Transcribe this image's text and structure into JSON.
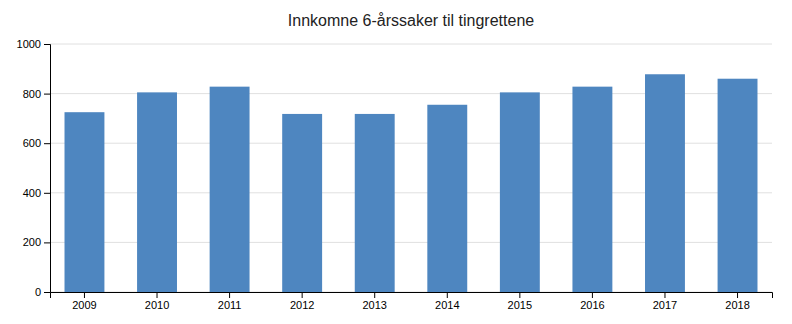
{
  "chart_data": {
    "type": "bar",
    "title": "Innkomne 6-årssaker til tingrettene",
    "categories": [
      "2009",
      "2010",
      "2011",
      "2012",
      "2013",
      "2014",
      "2015",
      "2016",
      "2017",
      "2018"
    ],
    "values": [
      725,
      805,
      828,
      718,
      718,
      755,
      805,
      828,
      878,
      860
    ],
    "color": "#4e86c0",
    "ylim": [
      0,
      1000
    ],
    "yticks": [
      0,
      200,
      400,
      600,
      800,
      1000
    ],
    "grid": true
  }
}
